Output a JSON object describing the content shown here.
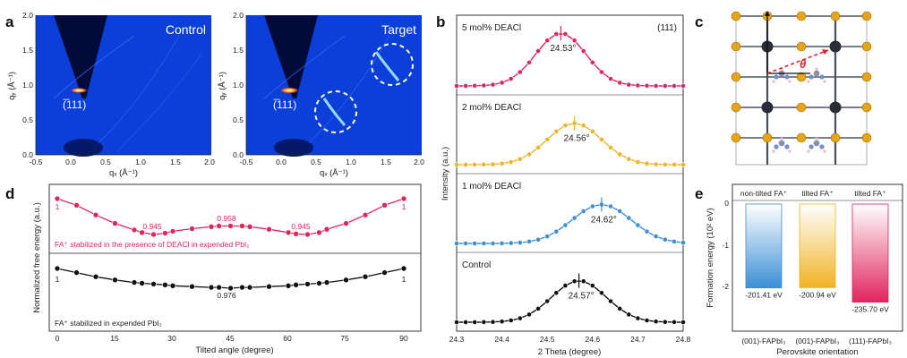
{
  "panel_labels": {
    "a": "a",
    "b": "b",
    "c": "c",
    "d": "d",
    "e": "e"
  },
  "panel_a": {
    "maps": [
      {
        "title": "Control",
        "peak_label": "(̅111)"
      },
      {
        "title": "Target",
        "peak_label": "(̅111)"
      }
    ],
    "xlabel": "qₓ (Å⁻¹)",
    "ylabel": "qᵧ (Å⁻¹)",
    "xticks": [
      "-0.5",
      "0.0",
      "0.5",
      "1.0",
      "1.5",
      "2.0"
    ],
    "yticks": [
      "0.0",
      "0.5",
      "1.0",
      "1.5",
      "2.0"
    ]
  },
  "panel_b": {
    "xlabel": "2 Theta (degree)",
    "ylabel": "Intensity (a.u.)",
    "xticks": [
      "24.3",
      "24.4",
      "24.5",
      "24.6",
      "24.7",
      "24.8"
    ],
    "plane": "(111)",
    "traces": [
      {
        "name": "5 mol% DEACl",
        "color": "#e0245e",
        "peak": "24.53°"
      },
      {
        "name": "2 mol% DEACl",
        "color": "#f0b323",
        "peak": "24.56°"
      },
      {
        "name": "1 mol% DEACl",
        "color": "#3a8fd6",
        "peak": "24.62°"
      },
      {
        "name": "Control",
        "color": "#111111",
        "peak": "24.57°"
      }
    ]
  },
  "panel_c": {
    "angle_symbol": "θ"
  },
  "panel_d": {
    "xlabel": "Tilted angle (degree)",
    "ylabel": "Normalized free energy (a.u.)",
    "top_caption": "FA⁺ stabilized in the presence of DEACl in expended PbI₂",
    "bottom_caption": "FA⁺ stabilized in expended PbI₂",
    "xticks": [
      "0",
      "15",
      "30",
      "45",
      "60",
      "75",
      "90"
    ],
    "top_labels": [
      "1",
      "0.945",
      "0.958",
      "0.945",
      "1"
    ],
    "bottom_labels": [
      "1",
      "0.976",
      "1"
    ],
    "colors": {
      "top": "#e0245e",
      "bottom": "#111111"
    }
  },
  "panel_e": {
    "ylabel": "Formation energy (10² eV)",
    "xlabel": "Perovskite orientation",
    "yticks": [
      "0",
      "-1",
      "-2"
    ],
    "headers": [
      "non-tilted FA⁺",
      "tilted FA⁺",
      "tilted FA⁺"
    ],
    "categories": [
      "(001)-FAPbI₃",
      "(001)-FAPbI₃",
      "(111)-FAPbI₃"
    ],
    "value_labels": [
      "-201.41 eV",
      "-200.94 eV",
      "-235.70 eV"
    ],
    "colors": [
      "#3a8fd6",
      "#f0b323",
      "#e0245e"
    ]
  },
  "chart_data": [
    {
      "type": "line",
      "panel": "b",
      "x": [
        24.3,
        24.32,
        24.34,
        24.36,
        24.38,
        24.4,
        24.42,
        24.44,
        24.46,
        24.48,
        24.5,
        24.52,
        24.54,
        24.56,
        24.58,
        24.6,
        24.62,
        24.64,
        24.66,
        24.68,
        24.7,
        24.72,
        24.74,
        24.76,
        24.78,
        24.8
      ],
      "series": [
        {
          "name": "5 mol% DEACl",
          "center": 24.53,
          "width": 0.055,
          "height": 1.0
        },
        {
          "name": "2 mol% DEACl",
          "center": 24.56,
          "width": 0.06,
          "height": 0.8
        },
        {
          "name": "1 mol% DEACl",
          "center": 24.62,
          "width": 0.065,
          "height": 0.75
        },
        {
          "name": "Control",
          "center": 24.57,
          "width": 0.06,
          "height": 0.8
        }
      ],
      "xlabel": "2 Theta (degree)",
      "ylabel": "Intensity (a.u.)",
      "xlim": [
        24.3,
        24.8
      ]
    },
    {
      "type": "line",
      "panel": "d",
      "x": [
        0,
        5,
        10,
        15,
        20,
        22,
        25,
        28,
        30,
        35,
        40,
        42,
        45,
        48,
        50,
        55,
        60,
        62,
        65,
        68,
        70,
        75,
        80,
        85,
        90
      ],
      "series": [
        {
          "name": "DEACl",
          "values": [
            1.0,
            0.99,
            0.975,
            0.962,
            0.952,
            0.948,
            0.945,
            0.947,
            0.95,
            0.954,
            0.957,
            0.958,
            0.958,
            0.958,
            0.957,
            0.953,
            0.948,
            0.946,
            0.945,
            0.948,
            0.953,
            0.962,
            0.975,
            0.99,
            1.0
          ]
        },
        {
          "name": "expended",
          "values": [
            1.0,
            0.995,
            0.99,
            0.986,
            0.983,
            0.982,
            0.981,
            0.98,
            0.979,
            0.978,
            0.977,
            0.977,
            0.976,
            0.977,
            0.977,
            0.978,
            0.979,
            0.98,
            0.981,
            0.982,
            0.983,
            0.986,
            0.99,
            0.995,
            1.0
          ]
        }
      ],
      "xlabel": "Tilted angle (degree)",
      "ylabel": "Normalized free energy (a.u.)",
      "xlim": [
        0,
        90
      ]
    },
    {
      "type": "bar",
      "panel": "e",
      "categories": [
        "(001)-FAPbI₃",
        "(001)-FAPbI₃",
        "(111)-FAPbI₃"
      ],
      "values": [
        -201.41,
        -200.94,
        -235.7
      ],
      "ylabel": "Formation energy (10² eV)",
      "ylim": [
        -2.5,
        0
      ]
    }
  ]
}
